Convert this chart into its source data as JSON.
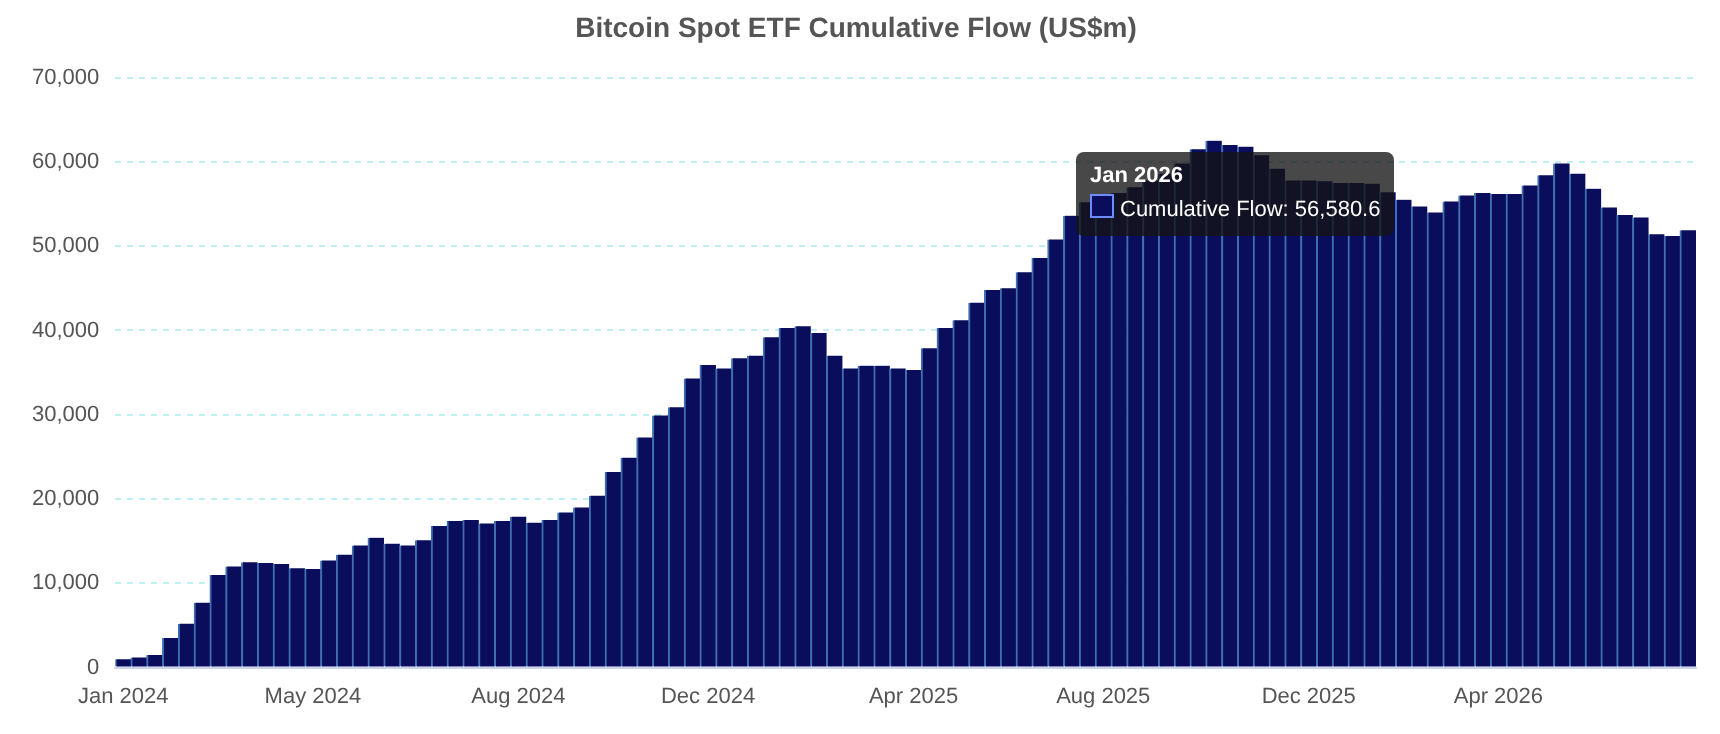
{
  "chart_data": {
    "type": "bar",
    "title": "Bitcoin Spot ETF Cumulative Flow (US$m)",
    "categories": [
      "Jan 2024",
      null,
      null,
      null,
      null,
      null,
      null,
      null,
      null,
      null,
      null,
      null,
      "May 2024",
      null,
      null,
      null,
      null,
      null,
      null,
      null,
      null,
      null,
      null,
      null,
      null,
      "Aug 2024",
      null,
      null,
      null,
      null,
      null,
      null,
      null,
      null,
      null,
      null,
      null,
      "Dec 2024",
      null,
      null,
      null,
      null,
      null,
      null,
      null,
      null,
      null,
      null,
      null,
      null,
      "Apr 2025",
      null,
      null,
      null,
      null,
      null,
      null,
      null,
      null,
      null,
      null,
      null,
      "Aug 2025",
      null,
      null,
      null,
      null,
      null,
      null,
      null,
      null,
      null,
      null,
      null,
      null,
      "Dec 2025",
      null,
      null,
      null,
      null,
      null,
      null,
      null,
      null,
      null,
      null,
      null,
      "Apr 2026",
      null,
      null,
      null,
      null,
      null,
      null,
      null,
      null,
      null,
      null,
      null,
      null
    ],
    "series": [
      {
        "color": "#0a0d5c",
        "values": [
          1000,
          1200,
          1500,
          3500,
          5200,
          7700,
          11000,
          12000,
          12500,
          12400,
          12300,
          11800,
          11700,
          12700,
          13400,
          14500,
          15400,
          14700,
          14500,
          15100,
          16800,
          17400,
          17500,
          17100,
          17400,
          17900,
          17200,
          17500,
          18400,
          19000,
          20400,
          23200,
          24900,
          27300,
          29900,
          30900,
          34300,
          35900,
          35500,
          36700,
          37000,
          39200,
          40300,
          40500,
          39700,
          37000,
          35500,
          35800,
          35800,
          35500,
          35300,
          37900,
          40300,
          41200,
          43300,
          44800,
          45000,
          46900,
          48600,
          50800,
          53600,
          55200,
          56000,
          56300,
          57000,
          57800,
          58600,
          59800,
          61500,
          62500,
          62000,
          61800,
          60800,
          59200,
          57800,
          57800,
          57700,
          57500,
          57500,
          57400,
          56400,
          55500,
          54700,
          54000,
          55300,
          56000,
          56300,
          56200,
          56200,
          57200,
          58400,
          59800,
          58600,
          56800,
          54600,
          53700,
          53400,
          51400,
          51200,
          51900
        ]
      }
    ],
    "ylim": [
      0,
      70000
    ],
    "yticks": [
      0,
      {
        "value": 10000,
        "label": "10,000"
      },
      {
        "value": 20000,
        "label": "20,000"
      },
      {
        "value": 30000,
        "label": "30,000"
      },
      {
        "value": 40000,
        "label": "40,000"
      },
      {
        "value": 50000,
        "label": "50,000"
      },
      {
        "value": 60000,
        "label": "60,000"
      },
      {
        "value": 70000,
        "label": "70,000"
      }
    ],
    "grid": "y",
    "legend": false,
    "annotations": [
      "Jan 2026",
      "Cumulative Flow: 56,580.6"
    ]
  }
}
